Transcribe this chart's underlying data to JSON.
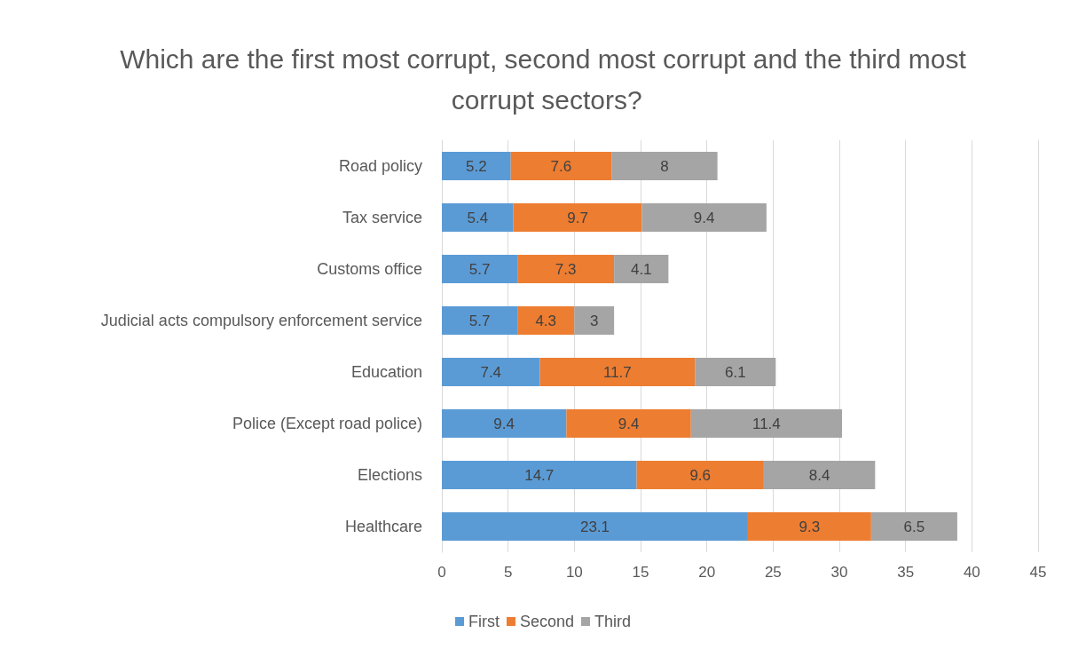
{
  "chart_data": {
    "type": "bar",
    "orientation": "horizontal",
    "stacked": true,
    "title": "Which are the first most corrupt, second most corrupt and the third most corrupt sectors?",
    "categories": [
      "Road policy",
      "Tax service",
      "Customs office",
      "Judicial acts compulsory enforcement service",
      "Education",
      "Police (Except road police)",
      "Elections",
      "Healthcare"
    ],
    "series": [
      {
        "name": "First",
        "color": "#5b9bd5",
        "values": [
          5.2,
          5.4,
          5.7,
          5.7,
          7.4,
          9.4,
          14.7,
          23.1
        ]
      },
      {
        "name": "Second",
        "color": "#ed7d31",
        "values": [
          7.6,
          9.7,
          7.3,
          4.3,
          11.7,
          9.4,
          9.6,
          9.3
        ]
      },
      {
        "name": "Third",
        "color": "#a5a5a5",
        "values": [
          8,
          9.4,
          4.1,
          3,
          6.1,
          11.4,
          8.4,
          6.5
        ]
      }
    ],
    "xlim": [
      0,
      45
    ],
    "xticks": [
      0,
      5,
      10,
      15,
      20,
      25,
      30,
      35,
      40,
      45
    ],
    "grid": "x",
    "legend": "bottom",
    "data_labels": true
  }
}
